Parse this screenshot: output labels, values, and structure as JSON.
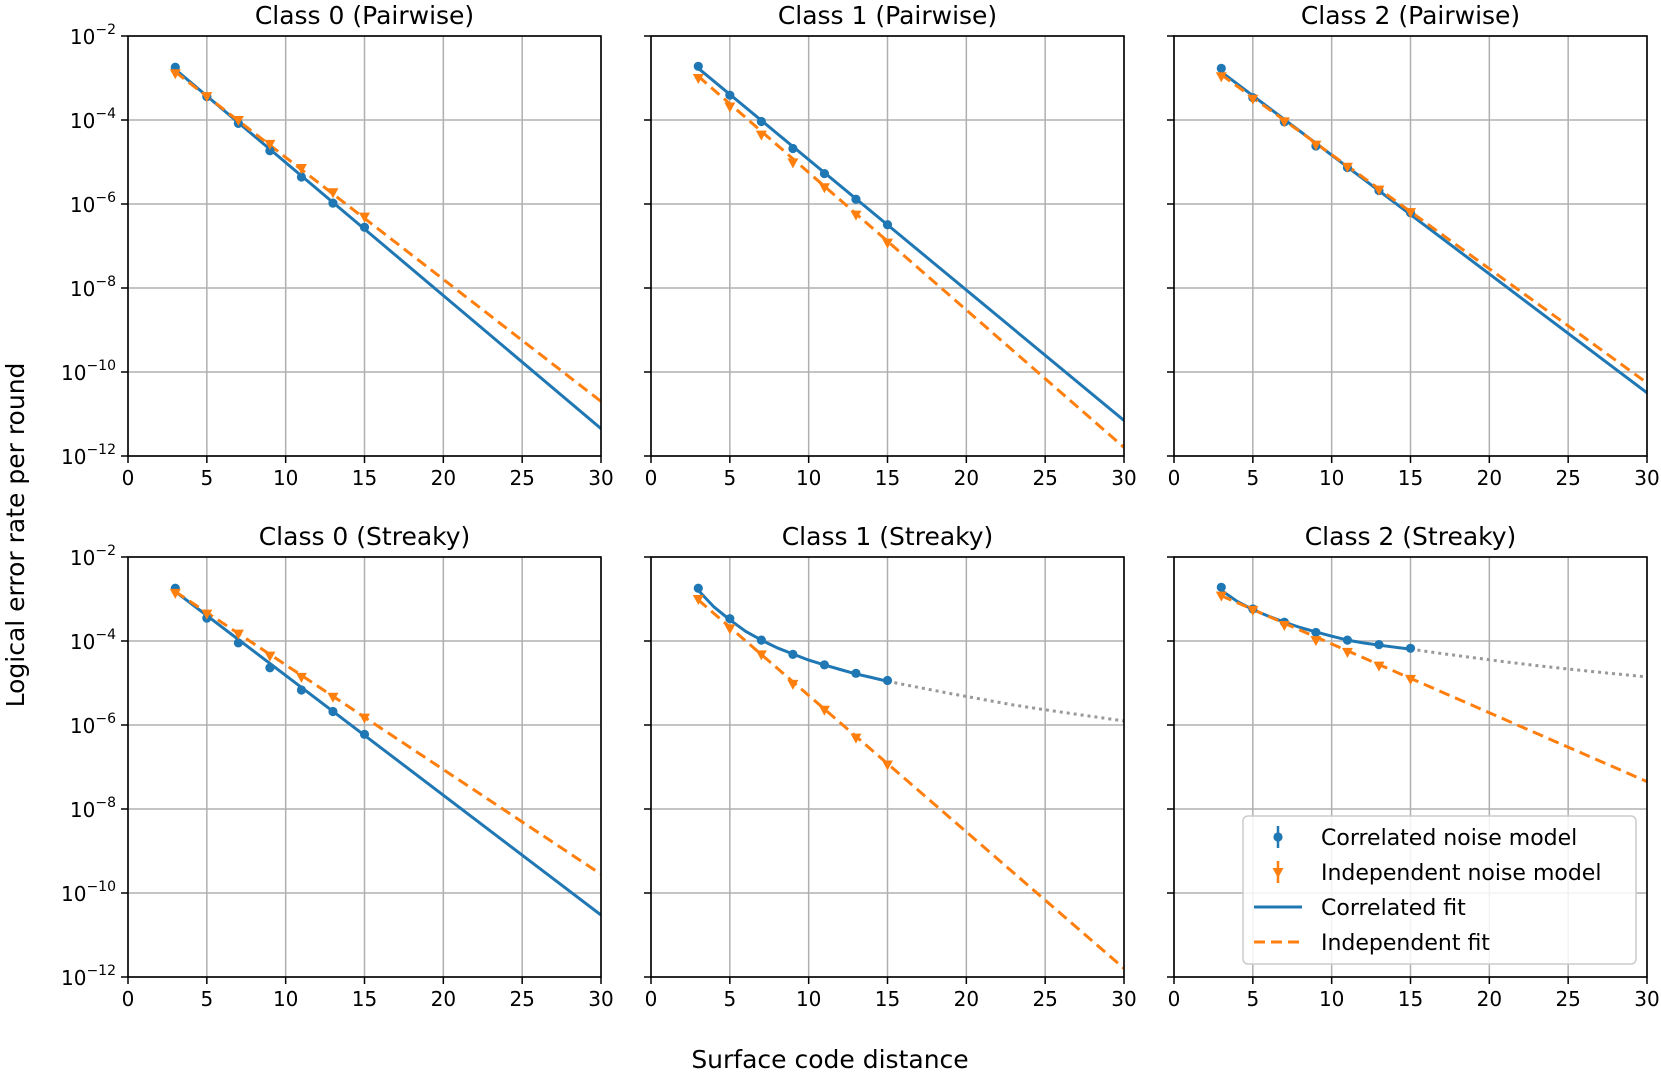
{
  "figure": {
    "xlabel": "Surface code distance",
    "ylabel": "Logical error rate per round"
  },
  "colors": {
    "correlated": "#1f77b4",
    "independent": "#ff7f0e",
    "extrapolation": "#999999",
    "grid": "#b0b0b0"
  },
  "legend": {
    "placement": "lower-right of bottom-right panel",
    "items": [
      {
        "label": "Correlated noise model",
        "kind": "marker-circle",
        "color": "#1f77b4"
      },
      {
        "label": "Independent noise model",
        "kind": "marker-triangle",
        "color": "#ff7f0e"
      },
      {
        "label": "Correlated fit",
        "kind": "line-solid",
        "color": "#1f77b4"
      },
      {
        "label": "Independent fit",
        "kind": "line-dashed",
        "color": "#ff7f0e"
      }
    ]
  },
  "chart_data": [
    {
      "type": "line",
      "title": "Class 0 (Pairwise)",
      "yscale": "log",
      "xlim": [
        0,
        30
      ],
      "ylim": [
        1e-12,
        0.01
      ],
      "grid": true,
      "x_ticks": [
        "0",
        "5",
        "10",
        "15",
        "20",
        "25",
        "30"
      ],
      "y_ticks": [
        {
          "base": "10",
          "exp": "−2"
        },
        {
          "base": "10",
          "exp": "−4"
        },
        {
          "base": "10",
          "exp": "−6"
        },
        {
          "base": "10",
          "exp": "−8"
        },
        {
          "base": "10",
          "exp": "−10"
        },
        {
          "base": "10",
          "exp": "−12"
        }
      ],
      "series": [
        {
          "name": "Correlated noise model",
          "x": [
            3,
            5,
            7,
            9,
            11,
            13,
            15
          ],
          "y": [
            0.0018,
            0.00036,
            8.3e-05,
            1.85e-05,
            4.4e-06,
            1.05e-06,
            2.8e-07
          ]
        },
        {
          "name": "Independent noise model",
          "x": [
            3,
            5,
            7,
            9,
            11,
            13,
            15
          ],
          "y": [
            0.0013,
            0.00037,
            0.0001,
            2.7e-05,
            7.2e-06,
            1.9e-06,
            5e-07
          ]
        },
        {
          "name": "Correlated fit",
          "x": [
            3,
            30
          ],
          "y": [
            0.0016,
            4.5e-12
          ]
        },
        {
          "name": "Independent fit",
          "x": [
            3,
            30
          ],
          "y": [
            0.0014,
            2e-11
          ]
        }
      ]
    },
    {
      "type": "line",
      "title": "Class 1 (Pairwise)",
      "yscale": "log",
      "xlim": [
        0,
        30
      ],
      "ylim": [
        1e-12,
        0.01
      ],
      "grid": true,
      "x_ticks": [
        "0",
        "5",
        "10",
        "15",
        "20",
        "25",
        "30"
      ],
      "y_ticks": [],
      "series": [
        {
          "name": "Correlated noise model",
          "x": [
            3,
            5,
            7,
            9,
            11,
            13,
            15
          ],
          "y": [
            0.0019,
            0.00039,
            9.2e-05,
            2.1e-05,
            5.3e-06,
            1.3e-06,
            3.2e-07
          ]
        },
        {
          "name": "Independent noise model",
          "x": [
            3,
            5,
            7,
            9,
            11,
            13,
            15
          ],
          "y": [
            0.001,
            0.00021,
            4.5e-05,
            9.8e-06,
            2.5e-06,
            5.6e-07,
            1.2e-07
          ]
        },
        {
          "name": "Correlated fit",
          "x": [
            3,
            30
          ],
          "y": [
            0.0017,
            7e-12
          ]
        },
        {
          "name": "Independent fit",
          "x": [
            3,
            30
          ],
          "y": [
            0.0011,
            1.6e-12
          ]
        }
      ]
    },
    {
      "type": "line",
      "title": "Class 2 (Pairwise)",
      "yscale": "log",
      "xlim": [
        0,
        30
      ],
      "ylim": [
        1e-12,
        0.01
      ],
      "grid": true,
      "x_ticks": [
        "0",
        "5",
        "10",
        "15",
        "20",
        "25",
        "30"
      ],
      "y_ticks": [],
      "series": [
        {
          "name": "Correlated noise model",
          "x": [
            3,
            5,
            7,
            9,
            11,
            13,
            15
          ],
          "y": [
            0.0017,
            0.00034,
            9e-05,
            2.4e-05,
            7.4e-06,
            2.1e-06,
            6.2e-07
          ]
        },
        {
          "name": "Independent noise model",
          "x": [
            3,
            5,
            7,
            9,
            11,
            13,
            15
          ],
          "y": [
            0.0011,
            0.00032,
            9.3e-05,
            2.6e-05,
            7.7e-06,
            2.2e-06,
            6.4e-07
          ]
        },
        {
          "name": "Correlated fit",
          "x": [
            3,
            30
          ],
          "y": [
            0.0014,
            3.2e-11
          ]
        },
        {
          "name": "Independent fit",
          "x": [
            3,
            30
          ],
          "y": [
            0.0012,
            5.5e-11
          ]
        }
      ]
    },
    {
      "type": "line",
      "title": "Class 0 (Streaky)",
      "yscale": "log",
      "xlim": [
        0,
        30
      ],
      "ylim": [
        1e-12,
        0.01
      ],
      "grid": true,
      "x_ticks": [
        "0",
        "5",
        "10",
        "15",
        "20",
        "25",
        "30"
      ],
      "y_ticks": [
        {
          "base": "10",
          "exp": "−2"
        },
        {
          "base": "10",
          "exp": "−4"
        },
        {
          "base": "10",
          "exp": "−6"
        },
        {
          "base": "10",
          "exp": "−8"
        },
        {
          "base": "10",
          "exp": "−10"
        },
        {
          "base": "10",
          "exp": "−12"
        }
      ],
      "series": [
        {
          "name": "Correlated noise model",
          "x": [
            3,
            5,
            7,
            9,
            11,
            13,
            15
          ],
          "y": [
            0.0018,
            0.00035,
            9e-05,
            2.3e-05,
            6.8e-06,
            2.1e-06,
            6e-07
          ]
        },
        {
          "name": "Independent noise model",
          "x": [
            3,
            5,
            7,
            9,
            11,
            13,
            15
          ],
          "y": [
            0.0014,
            0.00045,
            0.00015,
            4.5e-05,
            1.4e-05,
            4.7e-06,
            1.5e-06
          ]
        },
        {
          "name": "Correlated fit",
          "x": [
            3,
            30
          ],
          "y": [
            0.0015,
            3e-11
          ]
        },
        {
          "name": "Independent fit",
          "x": [
            3,
            30
          ],
          "y": [
            0.0015,
            2.8e-10
          ]
        }
      ]
    },
    {
      "type": "line",
      "title": "Class 1 (Streaky)",
      "yscale": "log",
      "xlim": [
        0,
        30
      ],
      "ylim": [
        1e-12,
        0.01
      ],
      "grid": true,
      "x_ticks": [
        "0",
        "5",
        "10",
        "15",
        "20",
        "25",
        "30"
      ],
      "y_ticks": [],
      "series": [
        {
          "name": "Correlated noise model",
          "x": [
            3,
            5,
            7,
            9,
            11,
            13,
            15
          ],
          "y": [
            0.0018,
            0.00034,
            0.000105,
            4.8e-05,
            2.7e-05,
            1.7e-05,
            1.15e-05
          ]
        },
        {
          "name": "Independent noise model",
          "x": [
            3,
            5,
            7,
            9,
            11,
            13,
            15
          ],
          "y": [
            0.001,
            0.0002,
            4.8e-05,
            9.5e-06,
            2.3e-06,
            5e-07,
            1.15e-07
          ]
        },
        {
          "name": "Correlated fit",
          "x": [
            3,
            4,
            5,
            6,
            7,
            8,
            9,
            10,
            11,
            12,
            13,
            14,
            15
          ],
          "y": [
            0.0016,
            0.00064,
            0.00032,
            0.00017,
            0.000105,
            6.9e-05,
            4.9e-05,
            3.5e-05,
            2.7e-05,
            2.1e-05,
            1.65e-05,
            1.35e-05,
            1.1e-05
          ]
        },
        {
          "name": "Correlated extrapolation",
          "x": [
            15,
            17,
            19,
            21,
            23,
            25,
            27,
            30
          ],
          "y": [
            1.1e-05,
            7.8e-06,
            5.6e-06,
            4.1e-06,
            3e-06,
            2.3e-06,
            1.8e-06,
            1.25e-06
          ]
        },
        {
          "name": "Independent fit",
          "x": [
            3,
            30
          ],
          "y": [
            0.00095,
            1.6e-12
          ]
        }
      ]
    },
    {
      "type": "line",
      "title": "Class 2 (Streaky)",
      "yscale": "log",
      "xlim": [
        0,
        30
      ],
      "ylim": [
        1e-12,
        0.01
      ],
      "grid": true,
      "x_ticks": [
        "0",
        "5",
        "10",
        "15",
        "20",
        "25",
        "30"
      ],
      "y_ticks": [],
      "series": [
        {
          "name": "Correlated noise model",
          "x": [
            3,
            5,
            7,
            9,
            11,
            13,
            15
          ],
          "y": [
            0.0019,
            0.00058,
            0.00028,
            0.00016,
            0.000105,
            8.2e-05,
            6.7e-05
          ]
        },
        {
          "name": "Independent noise model",
          "x": [
            3,
            5,
            7,
            9,
            11,
            13,
            15
          ],
          "y": [
            0.0012,
            0.00055,
            0.00024,
            0.000105,
            5.5e-05,
            2.6e-05,
            1.25e-05
          ]
        },
        {
          "name": "Correlated fit",
          "x": [
            3,
            4,
            5,
            6,
            7,
            8,
            9,
            10,
            11,
            12,
            13,
            14,
            15
          ],
          "y": [
            0.0016,
            0.00088,
            0.00056,
            0.00039,
            0.00028,
            0.00021,
            0.000165,
            0.00013,
            0.000105,
            9e-05,
            8e-05,
            7.1e-05,
            6.4e-05
          ]
        },
        {
          "name": "Correlated extrapolation",
          "x": [
            15,
            17,
            19,
            21,
            23,
            25,
            27,
            30
          ],
          "y": [
            6.4e-05,
            5e-05,
            4e-05,
            3.2e-05,
            2.6e-05,
            2.15e-05,
            1.8e-05,
            1.4e-05
          ]
        },
        {
          "name": "Independent fit",
          "x": [
            3,
            30
          ],
          "y": [
            0.0012,
            4.5e-08
          ]
        }
      ]
    }
  ]
}
